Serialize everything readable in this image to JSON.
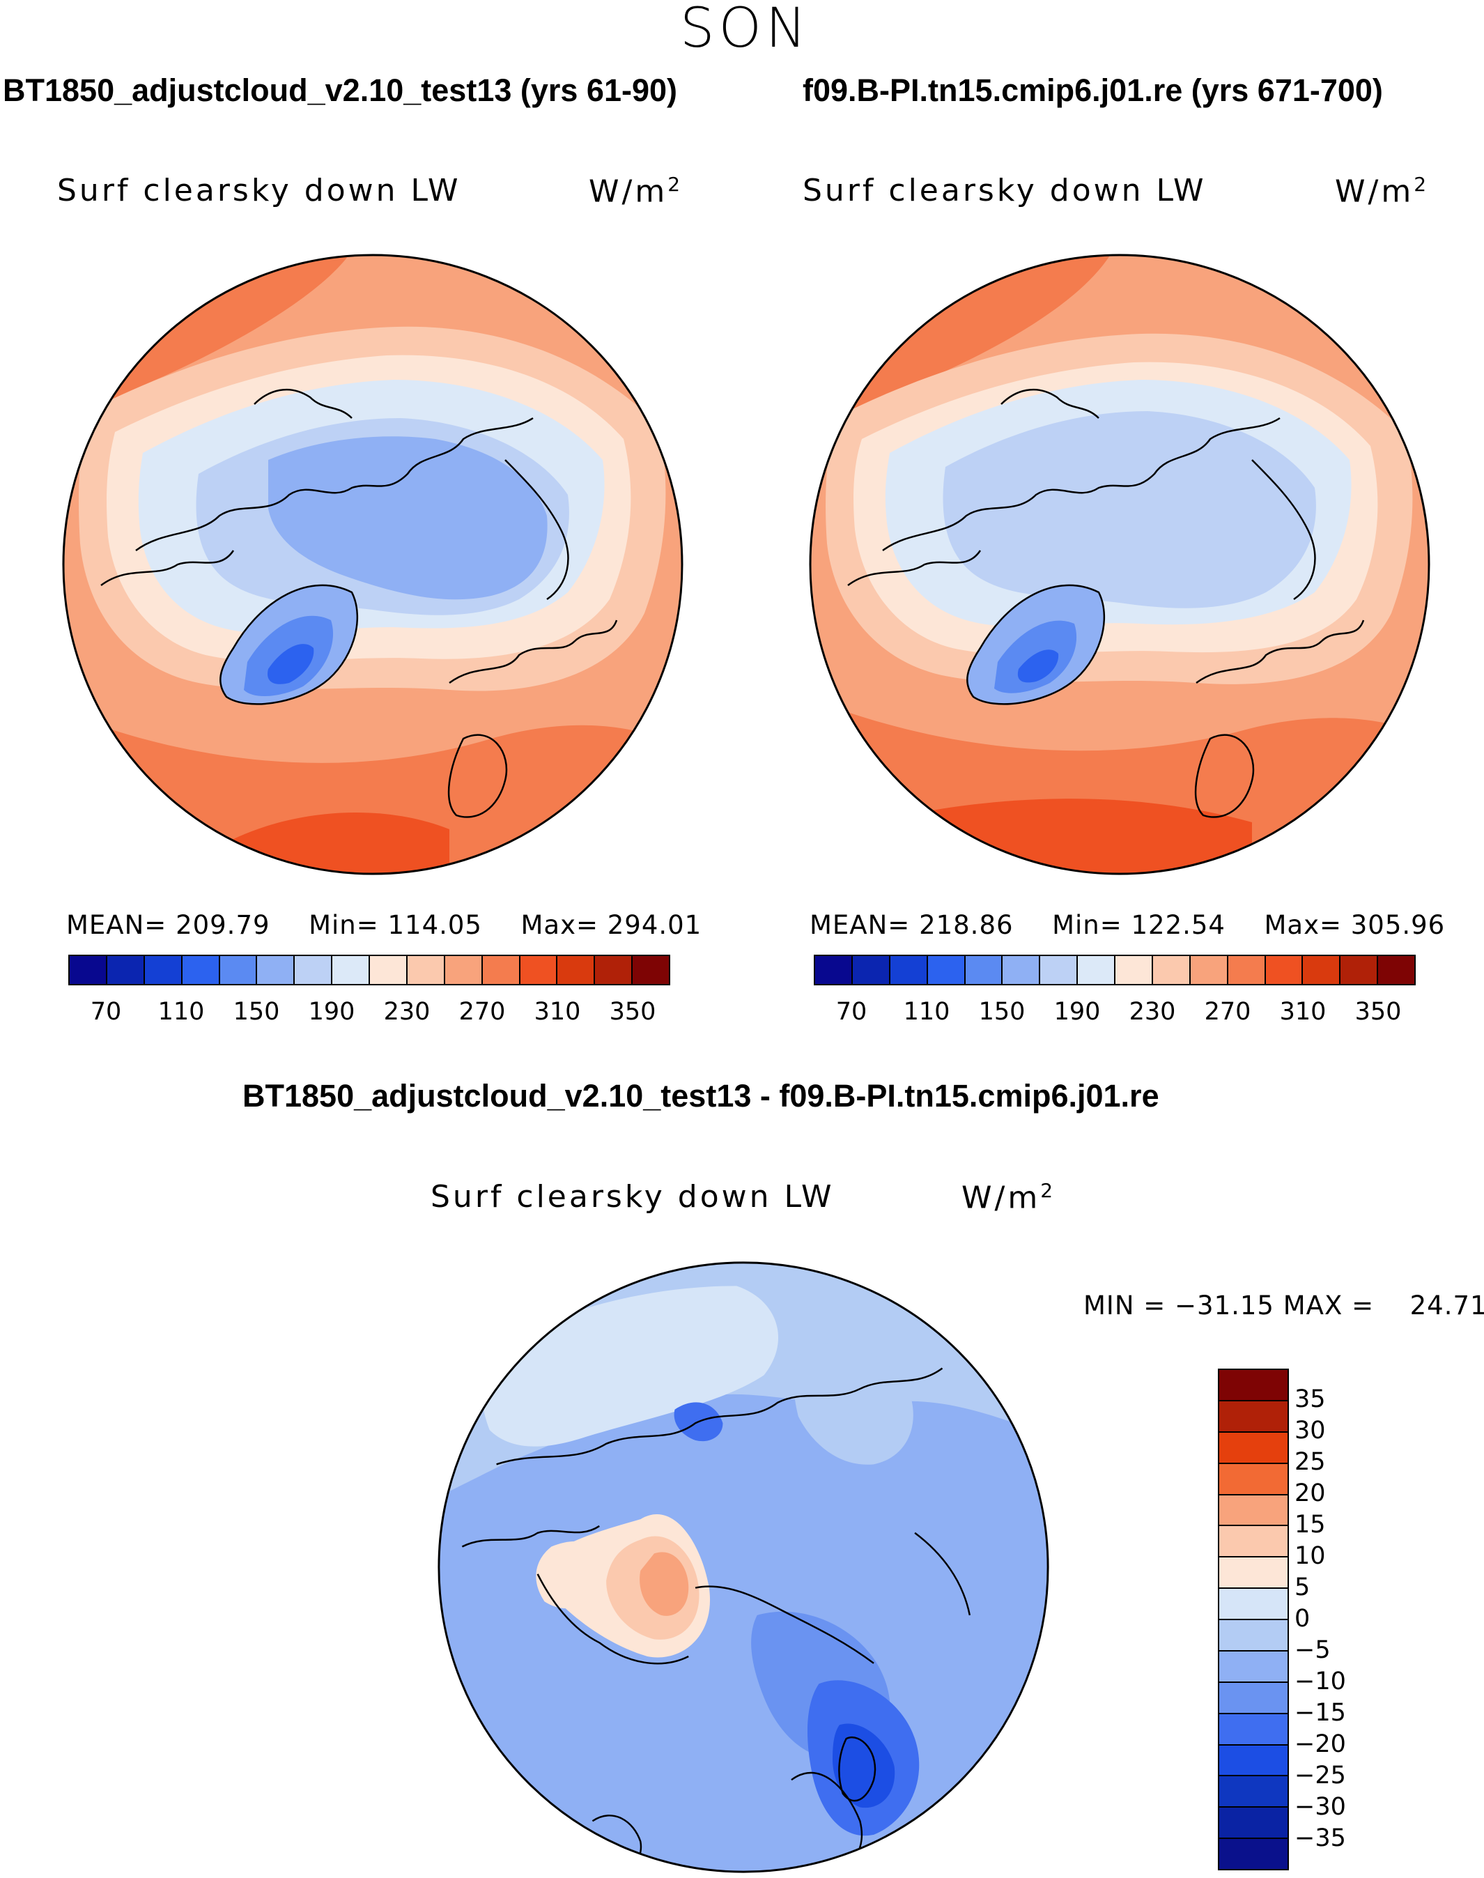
{
  "season": "SON",
  "panels": {
    "left": {
      "title": "BT1850_adjustcloud_v2.10_test13 (yrs 61-90)",
      "variable": "Surf clearsky down LW",
      "units_base": "W/m",
      "units_exp": "2",
      "stats": {
        "mean_label": "MEAN=",
        "mean": "209.79",
        "min_label": "Min=",
        "min": "114.05",
        "max_label": "Max=",
        "max": "294.01"
      }
    },
    "right": {
      "title": "f09.B-PI.tn15.cmip6.j01.re (yrs 671-700)",
      "variable": "Surf clearsky down LW",
      "units_base": "W/m",
      "units_exp": "2",
      "stats": {
        "mean_label": "MEAN=",
        "mean": "218.86",
        "min_label": "Min=",
        "min": "122.54",
        "max_label": "Max=",
        "max": "305.96"
      }
    },
    "diff": {
      "title": "BT1850_adjustcloud_v2.10_test13 - f09.B-PI.tn15.cmip6.j01.re",
      "variable": "Surf clearsky down LW",
      "units_base": "W/m",
      "units_exp": "2",
      "minmax": {
        "min_label": "MIN =",
        "min": "−31.15",
        "max_label": "MAX =",
        "max": "24.71"
      }
    }
  },
  "chart_data": [
    {
      "type": "heatmap",
      "projection": "north-polar-stereographic",
      "title": "BT1850_adjustcloud_v2.10_test13 (yrs 61-90)",
      "variable": "Surf clearsky down LW",
      "units": "W/m2",
      "mean": 209.79,
      "min": 114.05,
      "max": 294.01,
      "contour_levels": [
        70,
        90,
        110,
        130,
        150,
        170,
        190,
        210,
        230,
        250,
        270,
        290,
        310,
        330,
        350
      ],
      "colorbar_ticks": [
        "70",
        "110",
        "150",
        "190",
        "230",
        "270",
        "310",
        "350"
      ]
    },
    {
      "type": "heatmap",
      "projection": "north-polar-stereographic",
      "title": "f09.B-PI.tn15.cmip6.j01.re (yrs 671-700)",
      "variable": "Surf clearsky down LW",
      "units": "W/m2",
      "mean": 218.86,
      "min": 122.54,
      "max": 305.96,
      "contour_levels": [
        70,
        90,
        110,
        130,
        150,
        170,
        190,
        210,
        230,
        250,
        270,
        290,
        310,
        330,
        350
      ],
      "colorbar_ticks": [
        "70",
        "110",
        "150",
        "190",
        "230",
        "270",
        "310",
        "350"
      ]
    },
    {
      "type": "heatmap",
      "projection": "north-polar-stereographic",
      "title": "BT1850_adjustcloud_v2.10_test13 - f09.B-PI.tn15.cmip6.j01.re",
      "variable": "Surf clearsky down LW",
      "units": "W/m2",
      "min": -31.15,
      "max": 24.71,
      "contour_levels": [
        -35,
        -30,
        -25,
        -20,
        -15,
        -10,
        -5,
        0,
        5,
        10,
        15,
        20,
        25,
        30,
        35
      ],
      "colorbar_ticks": [
        "35",
        "30",
        "25",
        "20",
        "15",
        "10",
        "5",
        "0",
        "−5",
        "−10",
        "−15",
        "−20",
        "−25",
        "−30",
        "−35"
      ]
    }
  ],
  "colors": {
    "abs_palette": [
      "#08088f",
      "#0b25b0",
      "#1440d4",
      "#2c62ef",
      "#5b8af2",
      "#8fb0f4",
      "#bdd1f5",
      "#dce9f8",
      "#fde6d7",
      "#fbc9ae",
      "#f8a37c",
      "#f47c4e",
      "#ef5122",
      "#d93a0e",
      "#b02108",
      "#7e0404"
    ],
    "diff_palette": [
      "#7e0404",
      "#b02108",
      "#e5400d",
      "#f26a34",
      "#f8a37c",
      "#fbc9ae",
      "#fde6d7",
      "#d6e5f8",
      "#b3ccf4",
      "#8fb0f4",
      "#6a93f1",
      "#3f6ef0",
      "#1c4ee4",
      "#0f37c0",
      "#0a23a4",
      "#0a118c"
    ],
    "coast": "#000000"
  }
}
